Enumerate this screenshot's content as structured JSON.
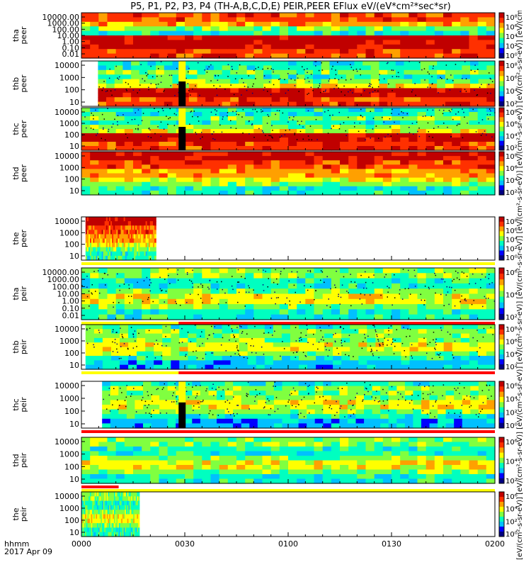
{
  "title": "P5, P1, P2, P3, P4 (TH-A,B,C,D,E) PEIR,PEER EFlux eV/(eV*cm²*sec*sr)",
  "colorbar_label": "[eV/(cm²-s-sr-eV)] [eV/(cm²-s-sr-eV)] [eV/(cm²-s-sr-eV)] [eV/(cm²-s-sr-eV)] [eV/(cm²-s-sr-eV)] [eV/(cm²-s-sr-eV)] [eV/(cm²-s-sr-eV)] [eV/(cm²-s-sr-eV)] [eV/(cm²-s-sr-eV)]",
  "footer": {
    "hhmm": "hhmm",
    "date": "2017 Apr 09"
  },
  "colors": {
    "spectrum": [
      "#000080",
      "#0000ff",
      "#00c0ff",
      "#00ffc0",
      "#80ff40",
      "#ffff00",
      "#ffa000",
      "#ff3000",
      "#c00000"
    ]
  },
  "chart_data": {
    "type": "heatmap",
    "x_ticks": [
      "0000",
      "0030",
      "0100",
      "0130",
      "0200"
    ],
    "xlim": [
      "00:00",
      "02:00"
    ],
    "panels": [
      {
        "id": "tha_peer",
        "ylabel": [
          "tha",
          "peer"
        ],
        "yticks": [
          "10000.00",
          "1000.00",
          "100.00",
          "10.00",
          "1.00",
          "0.10",
          "0.01"
        ],
        "cticks": [
          "10⁸",
          "10⁶",
          "10⁴",
          "10²",
          "10⁰"
        ],
        "start": 0.0,
        "end": 1.0,
        "bg": "#ffffff",
        "kind": "peer_a",
        "bar": null
      },
      {
        "id": "thb_peer",
        "ylabel": [
          "thb",
          "peer"
        ],
        "yticks": [
          "10000",
          "1000",
          "100",
          "10"
        ],
        "cticks": [
          "10⁸",
          "10⁶",
          "10⁴",
          "10²"
        ],
        "start": 0.04,
        "end": 1.0,
        "bg": "#ffffff",
        "kind": "peer_b",
        "bar": null
      },
      {
        "id": "thc_peer",
        "ylabel": [
          "thc",
          "peer"
        ],
        "yticks": [
          "10000",
          "1000",
          "100",
          "10"
        ],
        "cticks": [
          "10⁸",
          "10⁶",
          "10⁴",
          "10²"
        ],
        "start": 0.0,
        "end": 1.0,
        "bg": "#ffffff",
        "kind": "peer_c",
        "bar": null
      },
      {
        "id": "thd_peer",
        "ylabel": [
          "thd",
          "peer"
        ],
        "yticks": [
          "10000",
          "1000",
          "100",
          "10"
        ],
        "cticks": [
          "10⁸",
          "10⁶",
          "10⁴",
          "10²"
        ],
        "start": 0.0,
        "end": 1.0,
        "bg": "#ffffff",
        "kind": "peer_d",
        "bar": null
      },
      {
        "id": "the_peer",
        "ylabel": [
          "the",
          "peer"
        ],
        "yticks": [
          "10000",
          "1000",
          "100",
          "10"
        ],
        "cticks": [
          "10⁸",
          "10⁶",
          "10⁴",
          "10²",
          "10⁰"
        ],
        "start": 0.01,
        "end": 0.18,
        "bg": "#ffffff",
        "kind": "peer_e",
        "bar": "yellow"
      },
      {
        "id": "tha_peir",
        "ylabel": [
          "tha",
          "peir"
        ],
        "yticks": [
          "10000.00",
          "1000.00",
          "100.00",
          "10.00",
          "1.00",
          "0.10",
          "0.01"
        ],
        "cticks": [
          "10⁶",
          "10⁴",
          "10²"
        ],
        "start": 0.0,
        "end": 1.0,
        "bg": "#ffffff",
        "kind": "peir_a",
        "bar": "yellow_red"
      },
      {
        "id": "thb_peir",
        "ylabel": [
          "thb",
          "peir"
        ],
        "yticks": [
          "10000",
          "1000",
          "100",
          "10"
        ],
        "cticks": [
          "10⁸",
          "10⁶",
          "10⁴",
          "10²"
        ],
        "start": 0.01,
        "end": 1.0,
        "bg": "#ffffff",
        "kind": "peir_b",
        "bar": "red_yellow"
      },
      {
        "id": "thc_peir",
        "ylabel": [
          "thc",
          "peir"
        ],
        "yticks": [
          "10000",
          "1000",
          "100",
          "10"
        ],
        "cticks": [
          "10⁶",
          "10⁴",
          "10²",
          "10⁰"
        ],
        "start": 0.05,
        "end": 1.0,
        "bg": "#ffffff",
        "kind": "peir_c",
        "bar": "red"
      },
      {
        "id": "thd_peir",
        "ylabel": [
          "thd",
          "peir"
        ],
        "yticks": [
          "10000",
          "1000",
          "100",
          "10"
        ],
        "cticks": [
          "10⁶",
          "10⁴",
          "10²"
        ],
        "start": 0.0,
        "end": 1.0,
        "bg": "#ffffff",
        "kind": "peir_d",
        "bar": "red_short_yellow"
      },
      {
        "id": "the_peir",
        "ylabel": [
          "the",
          "peir"
        ],
        "yticks": [
          "10000",
          "1000",
          "100",
          "10"
        ],
        "cticks": [
          "10⁶",
          "10⁴",
          "10²",
          "10⁰"
        ],
        "start": 0.0,
        "end": 0.14,
        "bg": "#ffffff",
        "kind": "peir_e",
        "bar": null
      }
    ]
  }
}
